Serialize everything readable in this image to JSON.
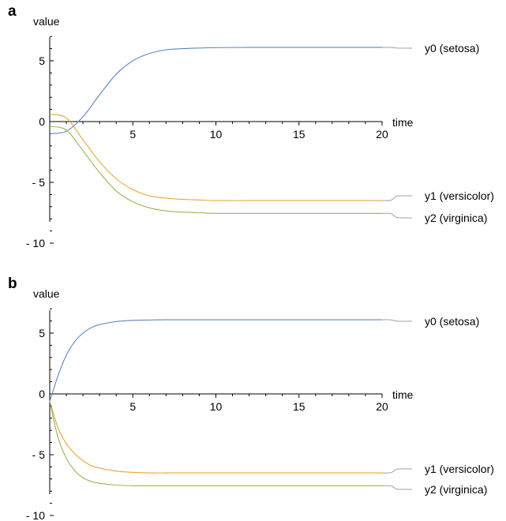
{
  "chart_data": [
    {
      "panel_label": "a",
      "type": "line",
      "xlabel": "time",
      "ylabel": "value",
      "xlim": [
        0,
        20
      ],
      "ylim": [
        -10,
        7
      ],
      "x_ticks": [
        5,
        10,
        15,
        20
      ],
      "x_tick_labels": [
        "5",
        "10",
        "15",
        "20"
      ],
      "y_ticks": [
        5,
        0,
        -5,
        -10
      ],
      "y_tick_labels": [
        "5",
        "0",
        "- 5",
        "- 10"
      ],
      "grid": false,
      "legend": "line-end labels at right",
      "series": [
        {
          "name": "y0 (setosa)",
          "color": "#5b86c6",
          "x": [
            0,
            1,
            2,
            3,
            4,
            5,
            6,
            7,
            8,
            9,
            10,
            12,
            14,
            16,
            18,
            20
          ],
          "y": [
            -1.0,
            -0.8,
            0.4,
            2.2,
            3.9,
            5.0,
            5.6,
            5.9,
            6.0,
            6.05,
            6.08,
            6.1,
            6.1,
            6.1,
            6.1,
            6.1
          ]
        },
        {
          "name": "y1 (versicolor)",
          "color": "#e8a53c",
          "x": [
            0,
            1,
            2,
            3,
            4,
            5,
            6,
            7,
            8,
            9,
            10,
            12,
            14,
            16,
            18,
            20
          ],
          "y": [
            0.6,
            0.3,
            -1.5,
            -3.3,
            -4.7,
            -5.6,
            -6.1,
            -6.3,
            -6.4,
            -6.45,
            -6.5,
            -6.5,
            -6.5,
            -6.5,
            -6.5,
            -6.5
          ]
        },
        {
          "name": "y2 (virginica)",
          "color": "#98b556",
          "x": [
            0,
            1,
            2,
            3,
            4,
            5,
            6,
            7,
            8,
            9,
            10,
            12,
            14,
            16,
            18,
            20
          ],
          "y": [
            -0.4,
            -0.7,
            -2.4,
            -4.2,
            -5.7,
            -6.6,
            -7.1,
            -7.35,
            -7.45,
            -7.5,
            -7.55,
            -7.55,
            -7.55,
            -7.55,
            -7.55,
            -7.55
          ]
        }
      ]
    },
    {
      "panel_label": "b",
      "type": "line",
      "xlabel": "time",
      "ylabel": "value",
      "xlim": [
        0,
        20
      ],
      "ylim": [
        -10,
        7
      ],
      "x_ticks": [
        5,
        10,
        15,
        20
      ],
      "x_tick_labels": [
        "5",
        "10",
        "15",
        "20"
      ],
      "y_ticks": [
        5,
        0,
        -5,
        -10
      ],
      "y_tick_labels": [
        "5",
        "0",
        "- 5",
        "- 10"
      ],
      "grid": false,
      "legend": "line-end labels at right",
      "series": [
        {
          "name": "y0 (setosa)",
          "color": "#5b86c6",
          "x": [
            0,
            0.5,
            1,
            1.5,
            2,
            2.5,
            3,
            4,
            5,
            6,
            7,
            8,
            10,
            12,
            15,
            20
          ],
          "y": [
            -0.6,
            1.5,
            3.2,
            4.3,
            5.0,
            5.45,
            5.7,
            5.95,
            6.05,
            6.08,
            6.1,
            6.1,
            6.1,
            6.1,
            6.1,
            6.1
          ]
        },
        {
          "name": "y1 (versicolor)",
          "color": "#e8a53c",
          "x": [
            0,
            0.5,
            1,
            1.5,
            2,
            2.5,
            3,
            4,
            5,
            6,
            7,
            8,
            10,
            12,
            15,
            20
          ],
          "y": [
            -0.6,
            -2.8,
            -4.1,
            -4.9,
            -5.5,
            -5.9,
            -6.1,
            -6.35,
            -6.45,
            -6.5,
            -6.5,
            -6.5,
            -6.5,
            -6.5,
            -6.5,
            -6.5
          ]
        },
        {
          "name": "y2 (virginica)",
          "color": "#98b556",
          "x": [
            0,
            0.5,
            1,
            1.5,
            2,
            2.5,
            3,
            4,
            5,
            6,
            7,
            8,
            10,
            12,
            15,
            20
          ],
          "y": [
            -0.6,
            -3.6,
            -5.3,
            -6.3,
            -6.9,
            -7.2,
            -7.35,
            -7.5,
            -7.55,
            -7.55,
            -7.55,
            -7.55,
            -7.55,
            -7.55,
            -7.55,
            -7.55
          ]
        }
      ]
    }
  ]
}
